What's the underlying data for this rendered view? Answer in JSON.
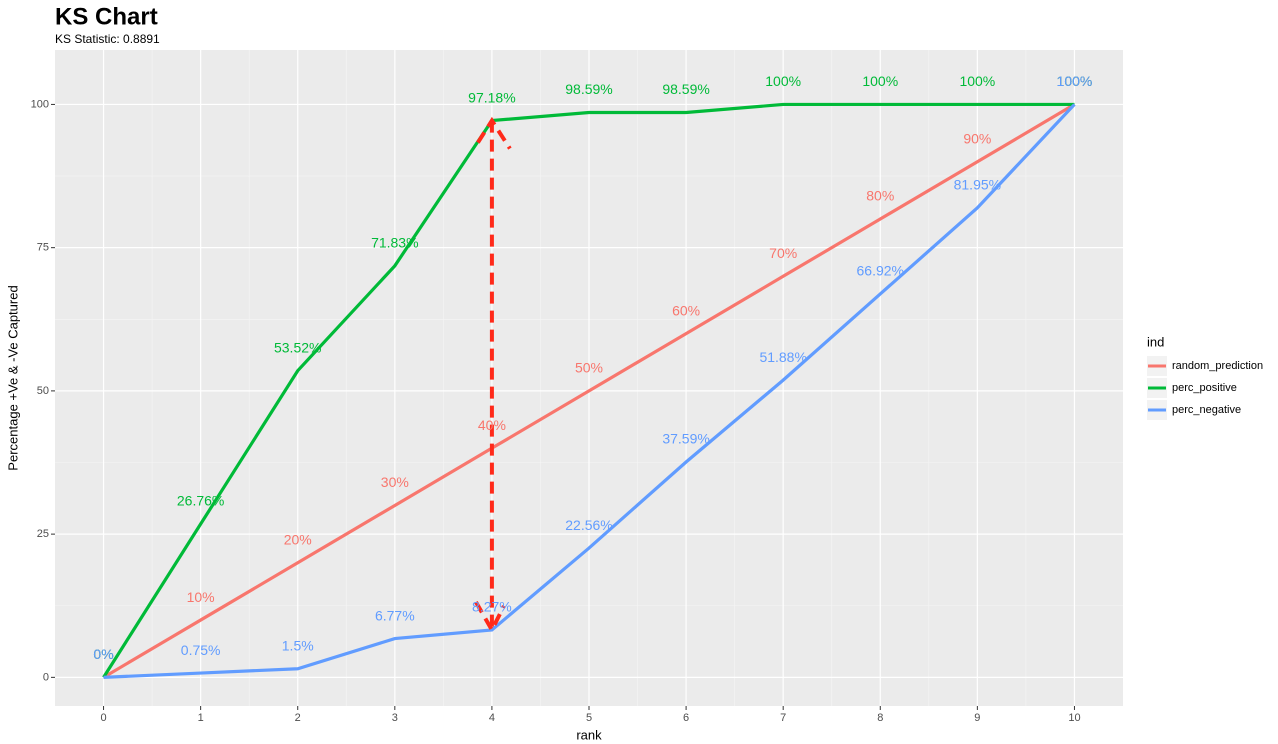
{
  "chart_data": {
    "type": "line",
    "title": "KS Chart",
    "subtitle": "KS Statistic:  0.8891",
    "x_label": "rank",
    "y_label": "Percentage +Ve & -Ve Captured",
    "x": [
      0,
      1,
      2,
      3,
      4,
      5,
      6,
      7,
      8,
      9,
      10
    ],
    "xlim": [
      -0.5,
      10.5
    ],
    "xticks": [
      0,
      1,
      2,
      3,
      4,
      5,
      6,
      7,
      8,
      9,
      10
    ],
    "ylim": [
      -5,
      109.5
    ],
    "yticks": [
      0,
      25,
      50,
      75,
      100
    ],
    "grid": true,
    "legend_title": "ind",
    "legend_position": "right",
    "series": [
      {
        "name": "random_prediction",
        "color": "#F8766D",
        "values": [
          0,
          10,
          20,
          30,
          40,
          50,
          60,
          70,
          80,
          90,
          100
        ],
        "value_labels": [
          "0%",
          "10%",
          "20%",
          "30%",
          "40%",
          "50%",
          "60%",
          "70%",
          "80%",
          "90%",
          "100%"
        ]
      },
      {
        "name": "perc_positive",
        "color": "#00BA38",
        "values": [
          0,
          26.76,
          53.52,
          71.83,
          97.18,
          98.59,
          98.59,
          100,
          100,
          100,
          100
        ],
        "value_labels": [
          "0%",
          "26.76%",
          "53.52%",
          "71.83%",
          "97.18%",
          "98.59%",
          "98.59%",
          "100%",
          "100%",
          "100%",
          "100%"
        ]
      },
      {
        "name": "perc_negative",
        "color": "#619CFF",
        "values": [
          0,
          0.75,
          1.5,
          6.77,
          8.27,
          22.56,
          37.59,
          51.88,
          66.92,
          81.95,
          100
        ],
        "value_labels": [
          "0%",
          "0.75%",
          "1.5%",
          "6.77%",
          "8.27%",
          "22.56%",
          "37.59%",
          "51.88%",
          "66.92%",
          "81.95%",
          "100%"
        ]
      }
    ],
    "annotation": {
      "type": "double-arrow",
      "x_index": 4,
      "from_series": 1,
      "to_series": 2,
      "color": "#FF2A1A"
    }
  }
}
